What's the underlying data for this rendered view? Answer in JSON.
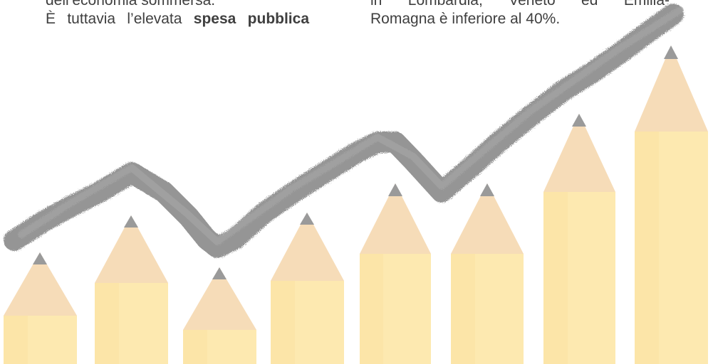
{
  "left_column": {
    "line1": "dell’economia sommersa.",
    "line2_prefix": "È tuttavia l’elevata ",
    "line2_bold": "spesa pubblica"
  },
  "right_column": {
    "line1": "in Lombardia, Veneto ed Emilia-",
    "line2": "Romagna è inferiore al 40%."
  },
  "illustration": {
    "pencil_body_color": "#fde9b0",
    "pencil_wood_color": "#f6dcb8",
    "pencil_tip_color": "#9a9a9a",
    "trend_color": "#8f8f8f"
  }
}
